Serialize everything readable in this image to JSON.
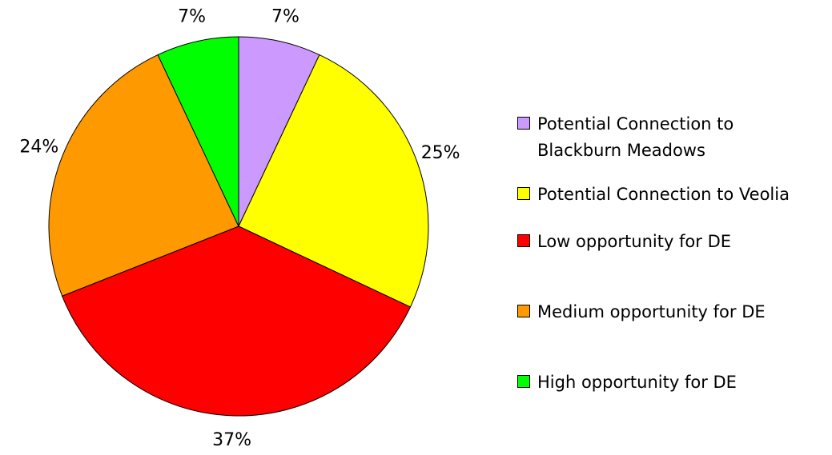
{
  "chart_data": {
    "type": "pie",
    "categories": [
      "Potential Connection to Blackburn Meadows",
      "Potential Connection to Veolia",
      "Low opportunity for DE",
      "Medium opportunity for DE",
      "High opportunity for DE"
    ],
    "values": [
      7,
      25,
      37,
      24,
      7
    ],
    "value_labels": [
      "7%",
      "25%",
      "37%",
      "24%",
      "7%"
    ],
    "colors": [
      "#cc99ff",
      "#ffff00",
      "#ff0000",
      "#ff9900",
      "#00ff00"
    ],
    "legend": "right"
  }
}
